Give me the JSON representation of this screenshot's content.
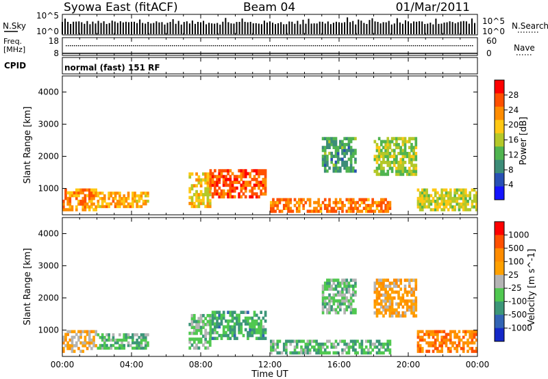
{
  "header": {
    "station": "Syowa East (fitACF)",
    "beam": "Beam 04",
    "date": "01/Mar/2011"
  },
  "top_panels": {
    "nsky_label": "N.Sky",
    "nsky_ticks": [
      "10^5",
      "10^0"
    ],
    "nsearch_label": "N.Search",
    "nsearch_ticks": [
      "10^5",
      "10^0"
    ],
    "freq_label": "Freq.",
    "freq_unit": "[MHz]",
    "freq_ticks": [
      "18",
      "8"
    ],
    "nave_label": "Nave",
    "nave_ticks": [
      "60",
      "0"
    ],
    "cpid_label": "CPID",
    "cpid_value": "normal (fast) 151 RF"
  },
  "x_axis": {
    "label": "Time UT",
    "ticks": [
      "00:00",
      "04:00",
      "08:00",
      "12:00",
      "16:00",
      "20:00",
      "00:00"
    ]
  },
  "chart_data": [
    {
      "type": "heatmap",
      "panel": "power",
      "ylabel": "Slant Range [km]",
      "ylim": [
        180,
        4500
      ],
      "yticks": [
        "1000",
        "2000",
        "3000",
        "4000"
      ],
      "xlim_hours": [
        0,
        24
      ],
      "colorbar_label": "Power [dB]",
      "colorbar_ticks": [
        "28",
        "24",
        "20",
        "16",
        "12",
        "8",
        "4"
      ],
      "colorbar_range": [
        0,
        30
      ],
      "colors": [
        "#1414ff",
        "#2850b4",
        "#3c8c78",
        "#50b450",
        "#b4c828",
        "#ffc814",
        "#ff8c00",
        "#ff5000",
        "#ff0000"
      ],
      "regions": [
        {
          "t": [
            0.0,
            2.0
          ],
          "r": [
            300,
            1000
          ],
          "v": 22
        },
        {
          "t": [
            2.0,
            5.0
          ],
          "r": [
            400,
            900
          ],
          "v": 20
        },
        {
          "t": [
            7.3,
            8.6
          ],
          "r": [
            400,
            1500
          ],
          "v": 18
        },
        {
          "t": [
            8.5,
            11.8
          ],
          "r": [
            700,
            1600
          ],
          "v": 25
        },
        {
          "t": [
            12.0,
            19.0
          ],
          "r": [
            250,
            700
          ],
          "v": 23
        },
        {
          "t": [
            15.0,
            17.0
          ],
          "r": [
            1500,
            2600
          ],
          "v": 10
        },
        {
          "t": [
            18.0,
            20.5
          ],
          "r": [
            1400,
            2600
          ],
          "v": 14
        },
        {
          "t": [
            20.5,
            24.0
          ],
          "r": [
            300,
            1000
          ],
          "v": 16
        }
      ]
    },
    {
      "type": "heatmap",
      "panel": "velocity",
      "ylabel": "Slant Range [km]",
      "ylim": [
        180,
        4500
      ],
      "yticks": [
        "1000",
        "2000",
        "3000",
        "4000"
      ],
      "xlim_hours": [
        0,
        24
      ],
      "colorbar_label": "Velocity [m s^-1]",
      "colorbar_ticks": [
        "1000",
        "500",
        "100",
        "25",
        "-25",
        "-100",
        "-500",
        "-1000"
      ],
      "colorbar_range": [
        -1200,
        1200
      ],
      "colors": [
        "#1428c8",
        "#3264b4",
        "#3c9678",
        "#50c850",
        "#b4b4b4",
        "#ffa000",
        "#ff8c00",
        "#ff5000",
        "#ff0000"
      ],
      "regions": [
        {
          "t": [
            0.0,
            2.0
          ],
          "r": [
            300,
            1000
          ],
          "v": 200
        },
        {
          "t": [
            2.0,
            5.0
          ],
          "r": [
            400,
            900
          ],
          "v": -300
        },
        {
          "t": [
            7.3,
            8.6
          ],
          "r": [
            400,
            1500
          ],
          "v": -200
        },
        {
          "t": [
            8.5,
            11.8
          ],
          "r": [
            700,
            1600
          ],
          "v": -400
        },
        {
          "t": [
            12.0,
            19.0
          ],
          "r": [
            250,
            700
          ],
          "v": -300
        },
        {
          "t": [
            15.0,
            17.0
          ],
          "r": [
            1500,
            2600
          ],
          "v": -200
        },
        {
          "t": [
            18.0,
            20.5
          ],
          "r": [
            1400,
            2600
          ],
          "v": 300
        },
        {
          "t": [
            20.5,
            24.0
          ],
          "r": [
            300,
            1000
          ],
          "v": 600
        }
      ]
    }
  ]
}
